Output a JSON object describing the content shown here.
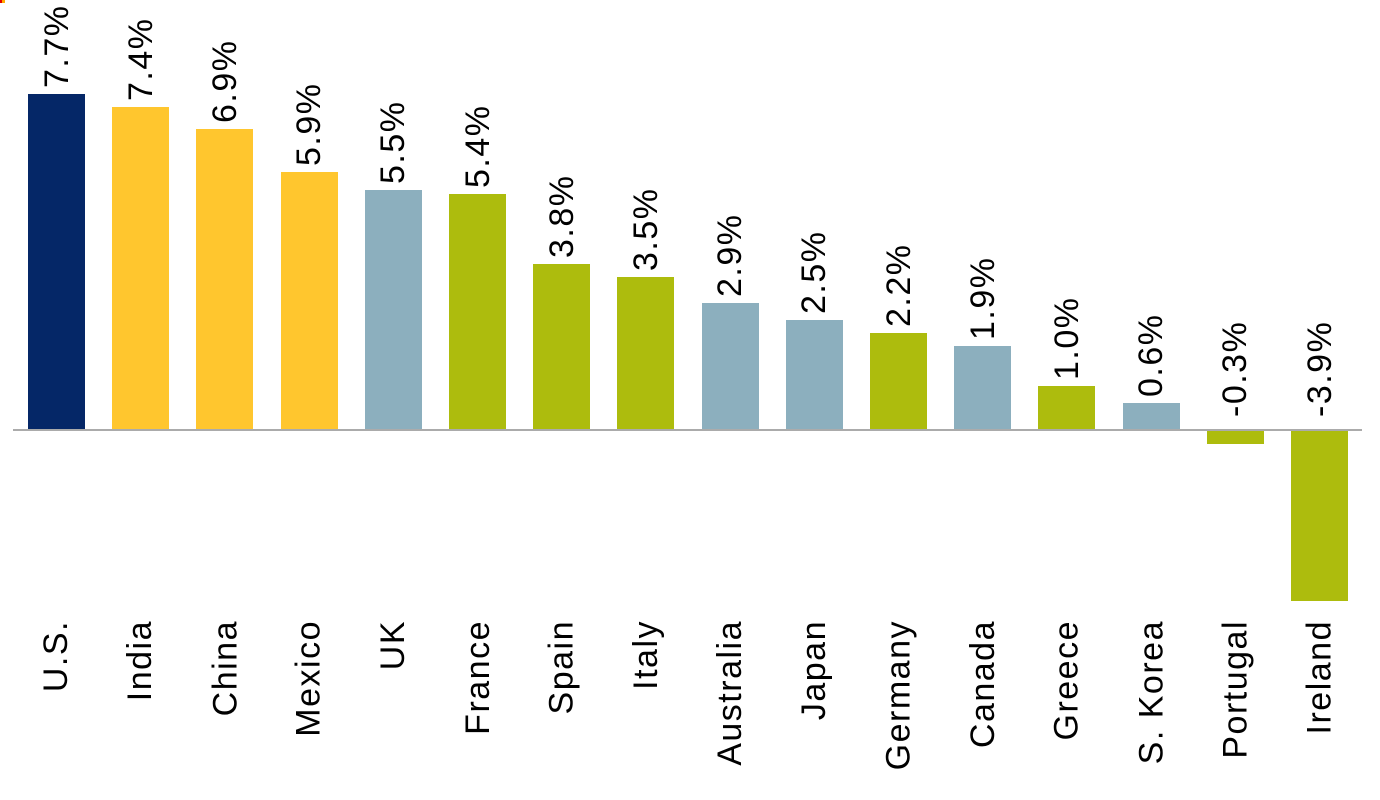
{
  "chart_data": {
    "type": "bar",
    "title": "",
    "xlabel": "",
    "ylabel": "",
    "categories": [
      "U.S.",
      "India",
      "China",
      "Mexico",
      "UK",
      "France",
      "Spain",
      "Italy",
      "Australia",
      "Japan",
      "Germany",
      "Canada",
      "Greece",
      "S. Korea",
      "Portugal",
      "Ireland"
    ],
    "values": [
      7.7,
      7.4,
      6.9,
      5.9,
      5.5,
      5.4,
      3.8,
      3.5,
      2.9,
      2.5,
      2.2,
      1.9,
      1.0,
      0.6,
      -0.3,
      -3.9
    ],
    "value_labels": [
      "7.7%",
      "7.4%",
      "6.9%",
      "5.9%",
      "5.5%",
      "5.4%",
      "3.8%",
      "3.5%",
      "2.9%",
      "2.5%",
      "2.2%",
      "1.9%",
      "1.0%",
      "0.6%",
      "-0.3%",
      "-3.9%"
    ],
    "bar_color_groups": [
      "navy",
      "yellow",
      "yellow",
      "yellow",
      "blue",
      "olive",
      "olive",
      "olive",
      "blue",
      "blue",
      "olive",
      "blue",
      "olive",
      "blue",
      "olive",
      "olive"
    ],
    "palette": {
      "navy": "#052767",
      "yellow": "#FFC62E",
      "blue": "#8CAFBE",
      "olive": "#ADBC0D"
    },
    "axis_line_color": "#ABABAB",
    "text_color": "#000000",
    "ylim": [
      -4.5,
      9.2
    ],
    "grid": false,
    "legend": "none",
    "value_label_position": "outside-end-rotated-90",
    "category_label_position": "below-axis-rotated-90"
  },
  "artifact": {
    "description": "tiny red-orange screen mark in top-left corner",
    "colors": [
      "#E00000",
      "#FFAA00"
    ]
  }
}
